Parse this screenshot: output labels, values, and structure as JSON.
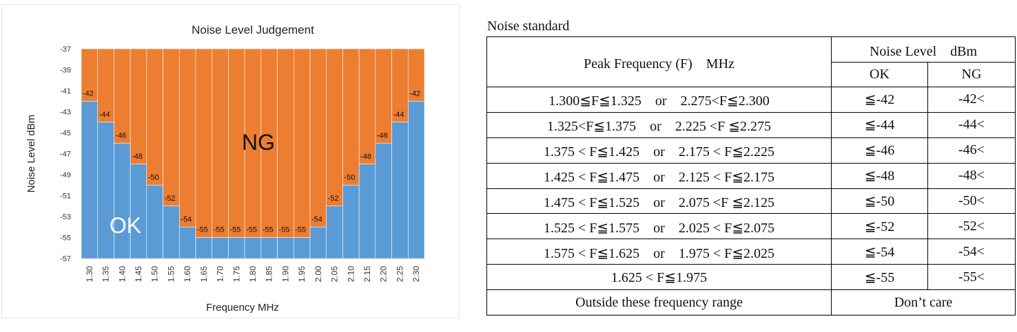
{
  "chart_data": {
    "type": "bar",
    "title": "Noise Level Judgement",
    "xlabel": "Frequency  MHz",
    "ylabel": "Noise Level  dBm",
    "ylim": [
      -57,
      -37
    ],
    "yticks": [
      "-37",
      "-39",
      "-41",
      "-43",
      "-45",
      "-47",
      "-49",
      "-51",
      "-53",
      "-55",
      "-57"
    ],
    "categories": [
      "1.30",
      "1.35",
      "1.40",
      "1.45",
      "1.50",
      "1.55",
      "1.60",
      "1.65",
      "1.70",
      "1.75",
      "1.80",
      "1.85",
      "1.90",
      "1.95",
      "2.00",
      "2.05",
      "2.10",
      "2.15",
      "2.20",
      "2.25",
      "2.30"
    ],
    "values": [
      -42,
      -44,
      -46,
      -48,
      -50,
      -52,
      -54,
      -55,
      -55,
      -55,
      -55,
      -55,
      -55,
      -55,
      -54,
      -52,
      -50,
      -48,
      -46,
      -44,
      -42
    ],
    "value_labels": [
      "-42",
      "-44",
      "-46",
      "-48",
      "-50",
      "-52",
      "-54",
      "-55",
      "-55",
      "-55",
      "-55",
      "-55",
      "-55",
      "-55",
      "-54",
      "-52",
      "-50",
      "-48",
      "-46",
      "-44",
      "-42"
    ],
    "regions": [
      {
        "label": "OK",
        "color": "#5b9bd5"
      },
      {
        "label": "NG",
        "color": "#ed7d31"
      }
    ],
    "grid": false,
    "legend": "none"
  },
  "table": {
    "caption": "Noise standard",
    "header": {
      "peak_frequency": "Peak Frequency (F)　MHz",
      "noise_level": "Noise Level　dBm",
      "ok": "OK",
      "ng": "NG"
    },
    "rows": [
      {
        "range": "1.300≦F≦1.325　or　2.275<F≦2.300",
        "ok": "≦-42",
        "ng": "-42<"
      },
      {
        "range": "1.325<F≦1.375　or　2.225 <F ≦2.275",
        "ok": "≦-44",
        "ng": "-44<"
      },
      {
        "range": "1.375 < F≦1.425　or　2.175 < F≦2.225",
        "ok": "≦-46",
        "ng": "-46<"
      },
      {
        "range": "1.425 < F≦1.475　or　2.125 < F≦2.175",
        "ok": "≦-48",
        "ng": "-48<"
      },
      {
        "range": "1.475 < F≦1.525　or　2.075 <F ≦2.125",
        "ok": "≦-50",
        "ng": "-50<"
      },
      {
        "range": "1.525 < F≦1.575　or　2.025 < F≦2.075",
        "ok": "≦-52",
        "ng": "-52<"
      },
      {
        "range": "1.575 < F≦1.625　or　1.975 < F≦2.025",
        "ok": "≦-54",
        "ng": "-54<"
      },
      {
        "range": "1.625 < F≦1.975",
        "ok": "≦-55",
        "ng": "-55<"
      }
    ],
    "footer": {
      "range": "Outside these frequency range",
      "judgement": "Don’t care"
    }
  }
}
